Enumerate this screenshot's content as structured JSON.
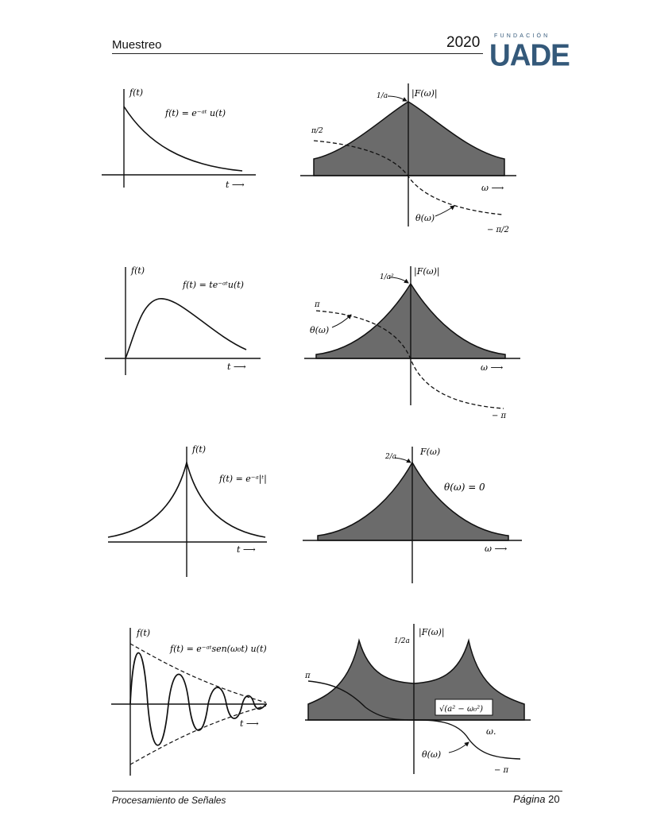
{
  "header": {
    "title": "Muestreo",
    "year": "2020",
    "logo_small": "FUNDACIÓN",
    "logo_big": "UADE"
  },
  "footer": {
    "subject": "Procesamiento de Señales",
    "page_label": "Página",
    "page_number": "20"
  },
  "figures": [
    {
      "time_axis_label": "f(t)",
      "time_formula": "f(t) = e⁻ᵃᵗ u(t)",
      "t_label": "t ⟶",
      "freq_axis_label": "|F(ω)|",
      "peak_label": "1/a",
      "top_phase_label": "π/2",
      "bottom_phase_label": "− π/2",
      "phase_label": "θ(ω)",
      "omega_label": "ω ⟶"
    },
    {
      "time_axis_label": "f(t)",
      "time_formula": "f(t) = te⁻ᵃᵗu(t)",
      "t_label": "t ⟶",
      "freq_axis_label": "|F(ω)|",
      "peak_label": "1/a²",
      "top_phase_label": "π",
      "bottom_phase_label": "− π",
      "phase_label": "θ(ω)",
      "omega_label": "ω ⟶"
    },
    {
      "time_axis_label": "f(t)",
      "time_formula": "f(t) = e⁻ᵃ|ᵗ|",
      "t_label": "t ⟶",
      "freq_axis_label": "F(ω)",
      "peak_label": "2/a",
      "phase_label": "θ(ω) = 0",
      "omega_label": "ω ⟶"
    },
    {
      "time_axis_label": "f(t)",
      "time_formula": "f(t) = e⁻ᵃᵗsen(ω₀t) u(t)",
      "t_label": "t ⟶",
      "freq_axis_label": "|F(ω)|",
      "peak_label": "1/2a",
      "top_phase_label": "π",
      "bottom_phase_label": "− π",
      "phase_label": "θ(ω)",
      "omega_label": "ω.",
      "marker_label": "√(a² − ω₀²)"
    }
  ]
}
